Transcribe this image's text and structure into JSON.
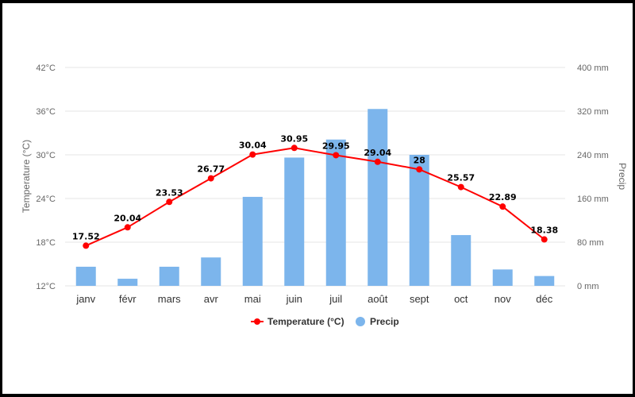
{
  "chart_data": {
    "type": "bar+line",
    "categories": [
      "janv",
      "févr",
      "mars",
      "avr",
      "mai",
      "juin",
      "juil",
      "août",
      "sept",
      "oct",
      "nov",
      "déc"
    ],
    "series": [
      {
        "name": "Temperature (°C)",
        "type": "line",
        "axis": "left",
        "color": "#ff0000",
        "values": [
          17.52,
          20.04,
          23.53,
          26.77,
          30.04,
          30.95,
          29.95,
          29.04,
          28,
          25.57,
          22.89,
          18.38
        ],
        "labels": [
          "17.52",
          "20.04",
          "23.53",
          "26.77",
          "30.04",
          "30.95",
          "29.95",
          "29.04",
          "28",
          "25.57",
          "22.89",
          "18.38"
        ]
      },
      {
        "name": "Precip",
        "type": "bar",
        "axis": "right",
        "color": "#7cb5ec",
        "values": [
          35,
          13,
          35,
          52,
          163,
          235,
          268,
          324,
          240,
          93,
          30,
          18
        ]
      }
    ],
    "y_left": {
      "title": "Temperature (°C)",
      "ylim": [
        12,
        42
      ],
      "ticks": [
        12,
        18,
        24,
        30,
        36,
        42
      ],
      "tick_labels": [
        "12°C",
        "18°C",
        "24°C",
        "30°C",
        "36°C",
        "42°C"
      ]
    },
    "y_right": {
      "title": "Precip",
      "ylim": [
        0,
        400
      ],
      "ticks": [
        0,
        80,
        160,
        240,
        320,
        400
      ],
      "tick_labels": [
        "0 mm",
        "80 mm",
        "160 mm",
        "240 mm",
        "320 mm",
        "400 mm"
      ]
    },
    "grid": true,
    "legend_position": "bottom-center",
    "gridline_color": "#e6e6e6"
  }
}
